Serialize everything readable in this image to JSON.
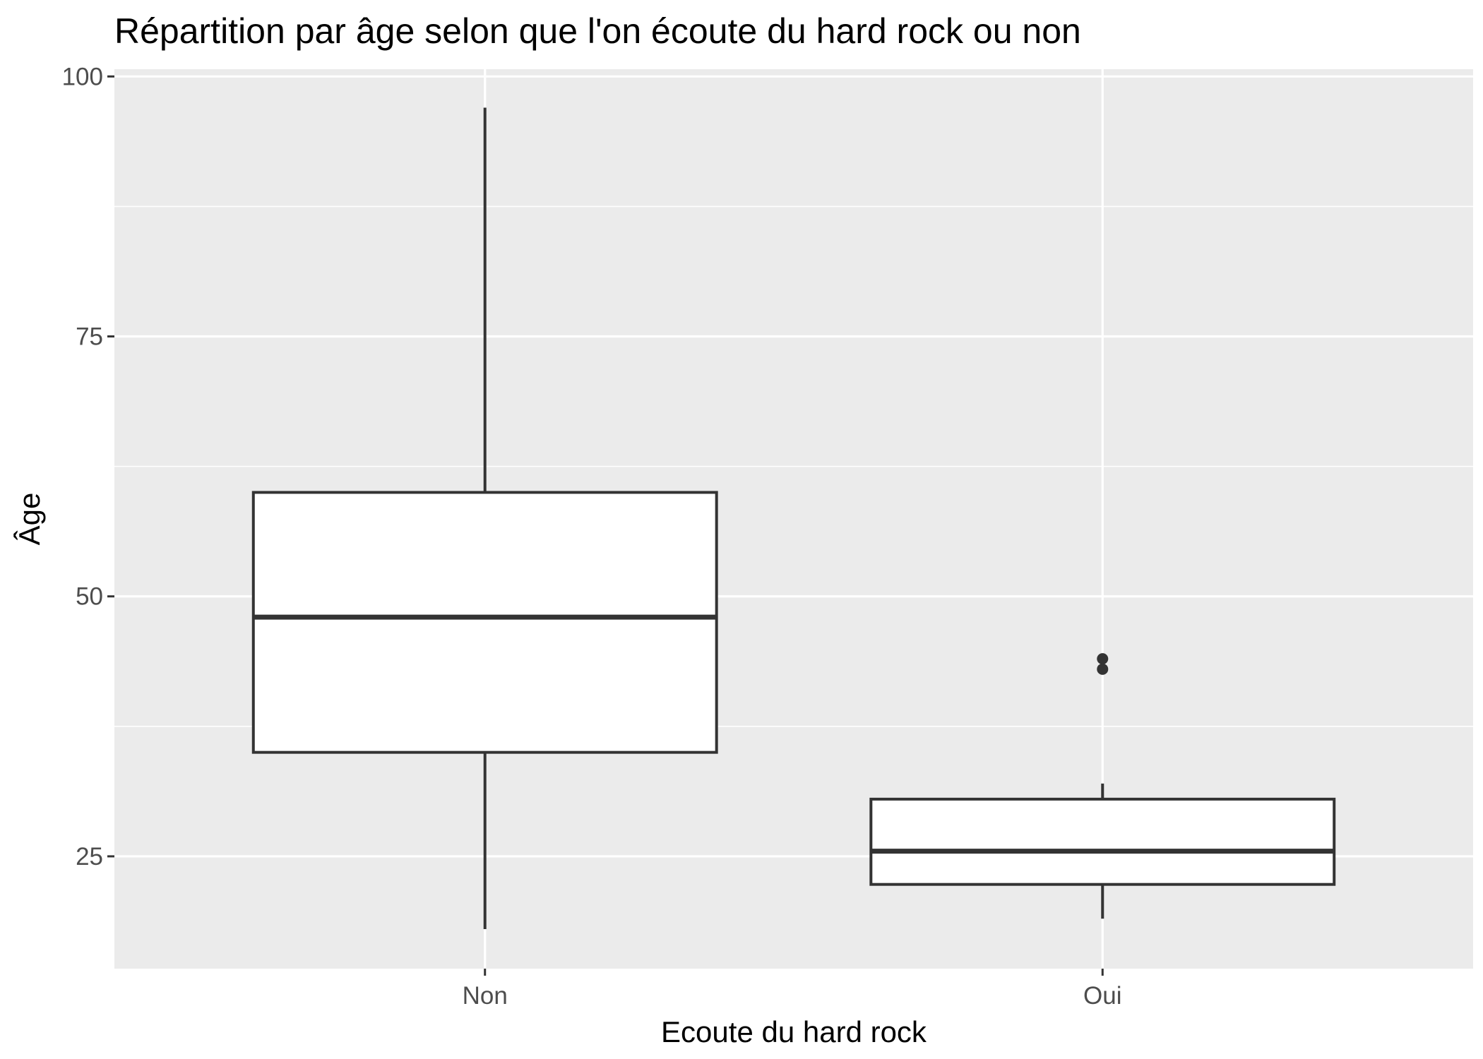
{
  "chart_data": {
    "type": "boxplot",
    "title": "Répartition par âge selon que l'on écoute du hard rock ou non",
    "xlabel": "Ecoute du hard rock",
    "ylabel": "Âge",
    "categories": [
      "Non",
      "Oui"
    ],
    "y_ticks": [
      25,
      50,
      75,
      100
    ],
    "ylim": [
      14.2,
      100.7
    ],
    "grid": true,
    "boxes": [
      {
        "category": "Non",
        "whisker_low": 18,
        "q1": 35,
        "median": 48,
        "q3": 60,
        "whisker_high": 97,
        "outliers": []
      },
      {
        "category": "Oui",
        "whisker_low": 19,
        "q1": 22.3,
        "median": 25.5,
        "q3": 30.5,
        "whisker_high": 32,
        "outliers": [
          43,
          44
        ]
      }
    ]
  }
}
